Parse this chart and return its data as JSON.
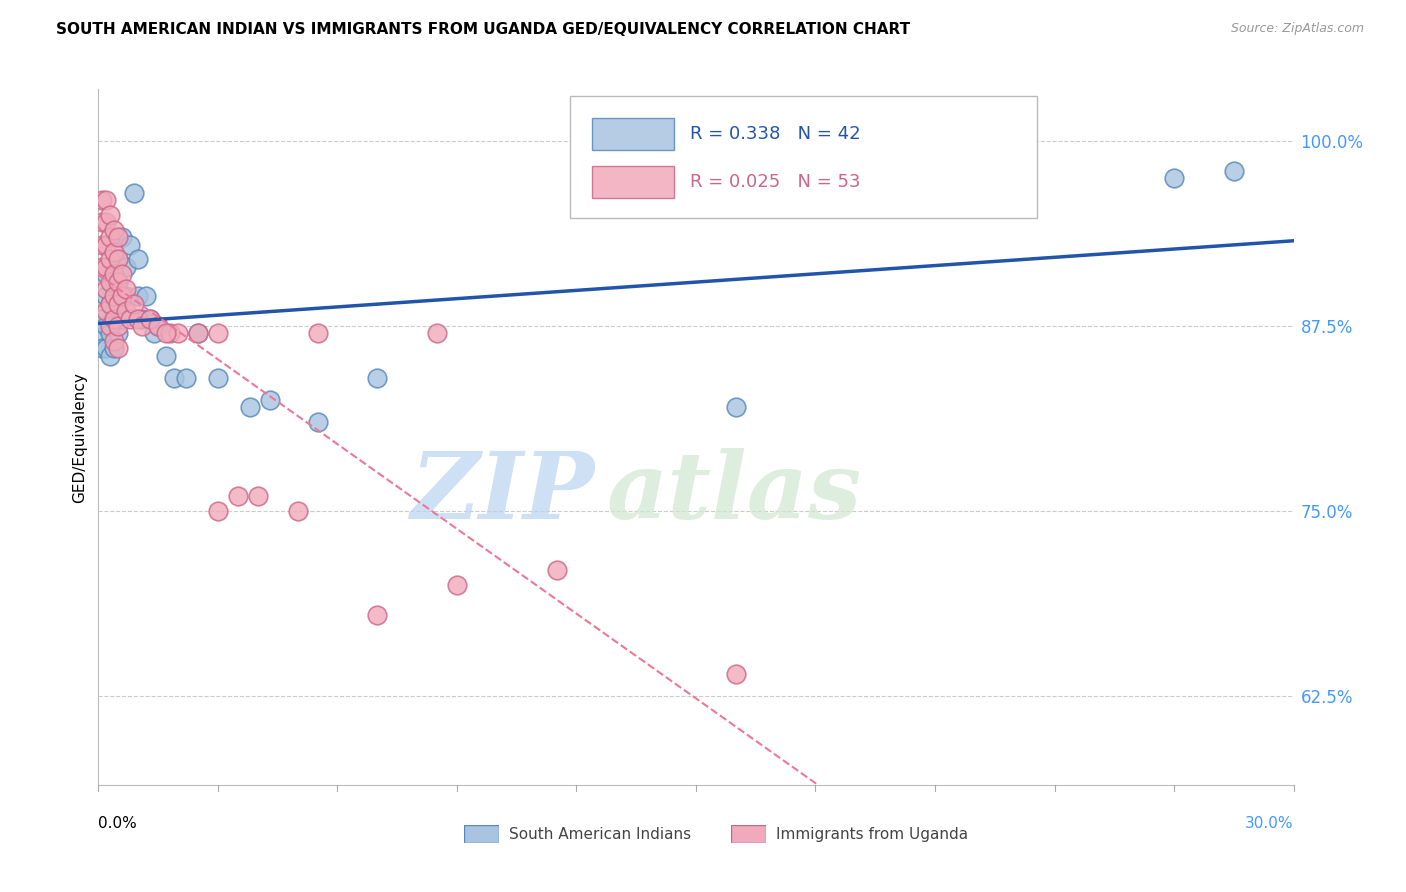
{
  "title": "SOUTH AMERICAN INDIAN VS IMMIGRANTS FROM UGANDA GED/EQUIVALENCY CORRELATION CHART",
  "source": "Source: ZipAtlas.com",
  "ylabel": "GED/Equivalency",
  "ytick_labels": [
    "62.5%",
    "75.0%",
    "87.5%",
    "100.0%"
  ],
  "ytick_vals": [
    0.625,
    0.75,
    0.875,
    1.0
  ],
  "xlim": [
    0.0,
    0.3
  ],
  "ylim": [
    0.565,
    1.035
  ],
  "legend1_R": "0.338",
  "legend1_N": "42",
  "legend2_R": "0.025",
  "legend2_N": "53",
  "blue_color": "#A8C4E0",
  "blue_edge": "#5588BB",
  "pink_color": "#F0AABB",
  "pink_edge": "#CC6688",
  "blue_line_color": "#2255AA",
  "pink_line_color": "#EE7799",
  "watermark_zip": "ZIP",
  "watermark_atlas": "atlas",
  "blue_scatter_x": [
    0.001,
    0.001,
    0.001,
    0.002,
    0.002,
    0.002,
    0.002,
    0.003,
    0.003,
    0.003,
    0.004,
    0.004,
    0.004,
    0.005,
    0.005,
    0.005,
    0.005,
    0.006,
    0.006,
    0.007,
    0.007,
    0.008,
    0.009,
    0.01,
    0.01,
    0.011,
    0.012,
    0.013,
    0.014,
    0.015,
    0.017,
    0.019,
    0.022,
    0.025,
    0.03,
    0.038,
    0.043,
    0.055,
    0.07,
    0.16,
    0.27,
    0.285
  ],
  "blue_scatter_y": [
    0.88,
    0.87,
    0.86,
    0.91,
    0.895,
    0.875,
    0.86,
    0.89,
    0.87,
    0.855,
    0.905,
    0.885,
    0.86,
    0.92,
    0.905,
    0.89,
    0.87,
    0.935,
    0.88,
    0.915,
    0.895,
    0.93,
    0.965,
    0.92,
    0.895,
    0.88,
    0.895,
    0.88,
    0.87,
    0.875,
    0.855,
    0.84,
    0.84,
    0.87,
    0.84,
    0.82,
    0.825,
    0.81,
    0.84,
    0.82,
    0.975,
    0.98
  ],
  "pink_scatter_x": [
    0.001,
    0.001,
    0.001,
    0.001,
    0.002,
    0.002,
    0.002,
    0.002,
    0.002,
    0.002,
    0.003,
    0.003,
    0.003,
    0.003,
    0.003,
    0.003,
    0.004,
    0.004,
    0.004,
    0.004,
    0.004,
    0.004,
    0.005,
    0.005,
    0.005,
    0.005,
    0.005,
    0.005,
    0.006,
    0.006,
    0.007,
    0.007,
    0.008,
    0.009,
    0.01,
    0.011,
    0.013,
    0.015,
    0.018,
    0.02,
    0.025,
    0.03,
    0.03,
    0.035,
    0.04,
    0.05,
    0.07,
    0.09,
    0.115,
    0.16,
    0.017,
    0.055,
    0.085
  ],
  "pink_scatter_y": [
    0.96,
    0.945,
    0.93,
    0.915,
    0.96,
    0.945,
    0.93,
    0.915,
    0.9,
    0.885,
    0.95,
    0.935,
    0.92,
    0.905,
    0.89,
    0.875,
    0.94,
    0.925,
    0.91,
    0.895,
    0.88,
    0.865,
    0.935,
    0.92,
    0.905,
    0.89,
    0.875,
    0.86,
    0.91,
    0.895,
    0.9,
    0.885,
    0.88,
    0.89,
    0.88,
    0.875,
    0.88,
    0.875,
    0.87,
    0.87,
    0.87,
    0.87,
    0.75,
    0.76,
    0.76,
    0.75,
    0.68,
    0.7,
    0.71,
    0.64,
    0.87,
    0.87,
    0.87
  ]
}
